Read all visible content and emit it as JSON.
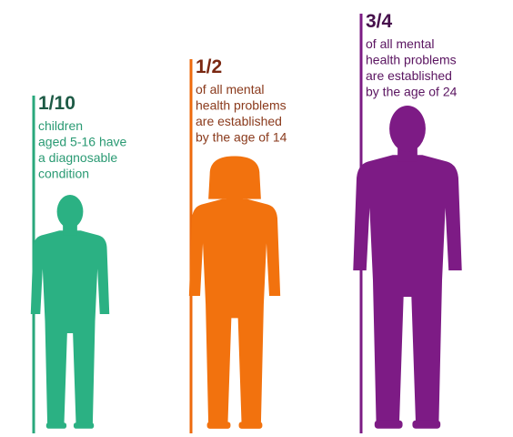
{
  "panels": [
    {
      "stat": "1/10",
      "lines": [
        "children",
        "aged 5-16 have",
        "a diagnosable",
        "condition"
      ]
    },
    {
      "stat": "1/2",
      "lines": [
        "of all mental",
        "health problems",
        "are established",
        "by the age of 14"
      ]
    },
    {
      "stat": "3/4",
      "lines": [
        "of all mental",
        "health problems",
        "are established",
        "by the age of 24"
      ]
    }
  ]
}
